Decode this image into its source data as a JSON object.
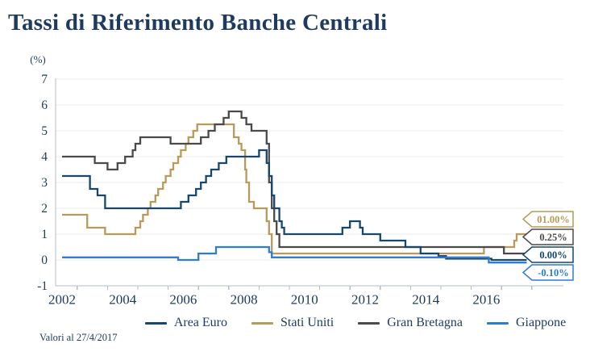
{
  "page": {
    "title": "Tassi di Riferimento Banche Centrali",
    "footnote": "Valori al 27/4/2017"
  },
  "chart_data": {
    "type": "line",
    "subtype": "step",
    "title": "Tassi di Riferimento Banche Centrali",
    "unit_label": "(%)",
    "xlabel": "",
    "ylabel": "(%)",
    "x_range": [
      2002,
      2018.2
    ],
    "x_axis_label_years": [
      2002,
      2004,
      2006,
      2008,
      2010,
      2012,
      2014,
      2016
    ],
    "ylim": [
      -1,
      7
    ],
    "yticks": [
      7,
      6,
      5,
      4,
      3,
      2,
      1,
      0,
      -1
    ],
    "grid": true,
    "legend_position": "bottom",
    "colors": {
      "text_navy": "#1e3a5f",
      "gridline": "#ececec",
      "axis": "#b3bdc9"
    },
    "series": [
      {
        "name": "Area Euro",
        "color": "#17476d",
        "end_label": "0.00%",
        "points": [
          [
            2002.0,
            3.25
          ],
          [
            2002.92,
            2.75
          ],
          [
            2003.17,
            2.5
          ],
          [
            2003.42,
            2.0
          ],
          [
            2005.92,
            2.25
          ],
          [
            2006.17,
            2.5
          ],
          [
            2006.42,
            2.75
          ],
          [
            2006.58,
            3.0
          ],
          [
            2006.75,
            3.25
          ],
          [
            2006.92,
            3.5
          ],
          [
            2007.17,
            3.75
          ],
          [
            2007.42,
            4.0
          ],
          [
            2008.5,
            4.25
          ],
          [
            2008.75,
            3.75
          ],
          [
            2008.83,
            3.25
          ],
          [
            2008.92,
            2.5
          ],
          [
            2009.0,
            2.0
          ],
          [
            2009.17,
            1.5
          ],
          [
            2009.25,
            1.25
          ],
          [
            2009.33,
            1.0
          ],
          [
            2011.25,
            1.25
          ],
          [
            2011.5,
            1.5
          ],
          [
            2011.83,
            1.25
          ],
          [
            2011.92,
            1.0
          ],
          [
            2012.5,
            0.75
          ],
          [
            2013.33,
            0.5
          ],
          [
            2013.83,
            0.25
          ],
          [
            2014.42,
            0.15
          ],
          [
            2014.67,
            0.05
          ],
          [
            2016.17,
            0.0
          ]
        ]
      },
      {
        "name": "Stati Uniti",
        "color": "#b89a5a",
        "end_label": "01.00%",
        "points": [
          [
            2002.0,
            1.75
          ],
          [
            2002.83,
            1.25
          ],
          [
            2003.42,
            1.0
          ],
          [
            2004.42,
            1.25
          ],
          [
            2004.58,
            1.5
          ],
          [
            2004.67,
            1.75
          ],
          [
            2004.83,
            2.0
          ],
          [
            2004.92,
            2.25
          ],
          [
            2005.08,
            2.5
          ],
          [
            2005.17,
            2.75
          ],
          [
            2005.33,
            3.0
          ],
          [
            2005.42,
            3.25
          ],
          [
            2005.58,
            3.5
          ],
          [
            2005.67,
            3.75
          ],
          [
            2005.83,
            4.0
          ],
          [
            2005.92,
            4.25
          ],
          [
            2006.08,
            4.5
          ],
          [
            2006.17,
            4.75
          ],
          [
            2006.33,
            5.0
          ],
          [
            2006.46,
            5.25
          ],
          [
            2007.67,
            4.75
          ],
          [
            2007.83,
            4.5
          ],
          [
            2007.92,
            4.25
          ],
          [
            2008.04,
            3.5
          ],
          [
            2008.08,
            3.0
          ],
          [
            2008.17,
            2.25
          ],
          [
            2008.33,
            2.0
          ],
          [
            2008.75,
            1.5
          ],
          [
            2008.83,
            1.0
          ],
          [
            2008.92,
            0.25
          ],
          [
            2015.92,
            0.5
          ],
          [
            2016.92,
            0.75
          ],
          [
            2017.0,
            1.0
          ]
        ]
      },
      {
        "name": "Gran Bretagna",
        "color": "#4a4a4c",
        "end_label": "0.25%",
        "points": [
          [
            2002.0,
            4.0
          ],
          [
            2003.08,
            3.75
          ],
          [
            2003.5,
            3.5
          ],
          [
            2003.83,
            3.75
          ],
          [
            2004.08,
            4.0
          ],
          [
            2004.33,
            4.25
          ],
          [
            2004.42,
            4.5
          ],
          [
            2004.58,
            4.75
          ],
          [
            2005.58,
            4.5
          ],
          [
            2006.58,
            4.75
          ],
          [
            2006.83,
            5.0
          ],
          [
            2007.04,
            5.25
          ],
          [
            2007.33,
            5.5
          ],
          [
            2007.5,
            5.75
          ],
          [
            2007.92,
            5.5
          ],
          [
            2008.08,
            5.25
          ],
          [
            2008.25,
            5.0
          ],
          [
            2008.75,
            4.5
          ],
          [
            2008.83,
            3.0
          ],
          [
            2008.92,
            2.0
          ],
          [
            2009.0,
            1.5
          ],
          [
            2009.08,
            1.0
          ],
          [
            2009.17,
            0.5
          ],
          [
            2016.58,
            0.25
          ]
        ]
      },
      {
        "name": "Giappone",
        "color": "#2e7cd6",
        "end_label": "-0.10%",
        "points": [
          [
            2002.0,
            0.1
          ],
          [
            2005.83,
            0.0
          ],
          [
            2006.5,
            0.25
          ],
          [
            2007.08,
            0.5
          ],
          [
            2008.83,
            0.3
          ],
          [
            2008.92,
            0.1
          ],
          [
            2016.08,
            -0.1
          ]
        ]
      }
    ]
  }
}
